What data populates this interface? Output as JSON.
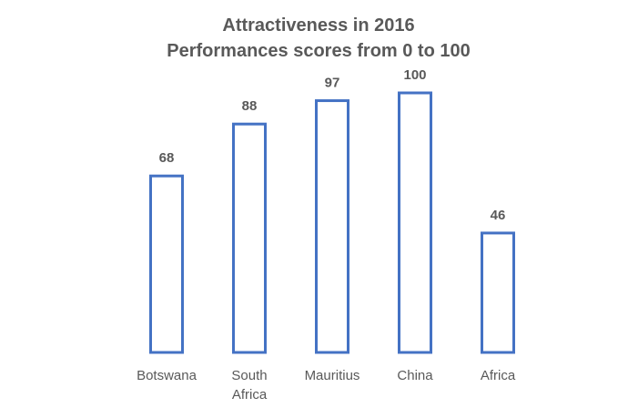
{
  "chart_data": {
    "type": "bar",
    "title_lines": [
      "Attractiveness in 2016",
      "Performances scores from 0 to 100"
    ],
    "categories": [
      [
        "Botswana"
      ],
      [
        "South",
        "Africa"
      ],
      [
        "Mauritius"
      ],
      [
        "China"
      ],
      [
        "Africa"
      ]
    ],
    "values": [
      68,
      88,
      97,
      100,
      46
    ],
    "data_labels": [
      "68",
      "88",
      "97",
      "100",
      "46"
    ],
    "ylim": [
      0,
      100
    ],
    "grid": false,
    "legend": "none",
    "bar_style": "outline",
    "colors": {
      "bar_outline": "#4472C4",
      "bar_fill": "#FFFFFF",
      "text": "#595959"
    }
  }
}
